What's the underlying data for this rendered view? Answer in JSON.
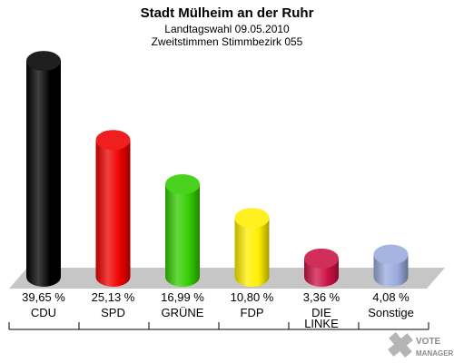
{
  "chart_data": {
    "type": "bar",
    "title": "Stadt Mülheim an der Ruhr",
    "subtitle_1": "Landtagswahl 09.05.2010",
    "subtitle_2": "Zweitstimmen Stimmbezirk 055",
    "categories": [
      "CDU",
      "SPD",
      "GRÜNE",
      "FDP",
      "DIE LINKE",
      "Sonstige"
    ],
    "category_lines": [
      [
        "CDU"
      ],
      [
        "SPD"
      ],
      [
        "GRÜNE"
      ],
      [
        "FDP"
      ],
      [
        "DIE",
        "LINKE"
      ],
      [
        "Sonstige"
      ]
    ],
    "values": [
      39.65,
      25.13,
      16.99,
      10.8,
      3.36,
      4.08
    ],
    "value_labels": [
      "39,65 %",
      "25,13 %",
      "16,99 %",
      "10,80 %",
      "3,36 %",
      "4,08 %"
    ],
    "colors": [
      "#000000",
      "#ee0000",
      "#33cc00",
      "#ffee00",
      "#cc1144",
      "#99aadd"
    ],
    "ylim": [
      0,
      40
    ],
    "grid": false,
    "legend": "none"
  },
  "logo": {
    "line1": "VOTE",
    "line2": "MANAGER"
  }
}
